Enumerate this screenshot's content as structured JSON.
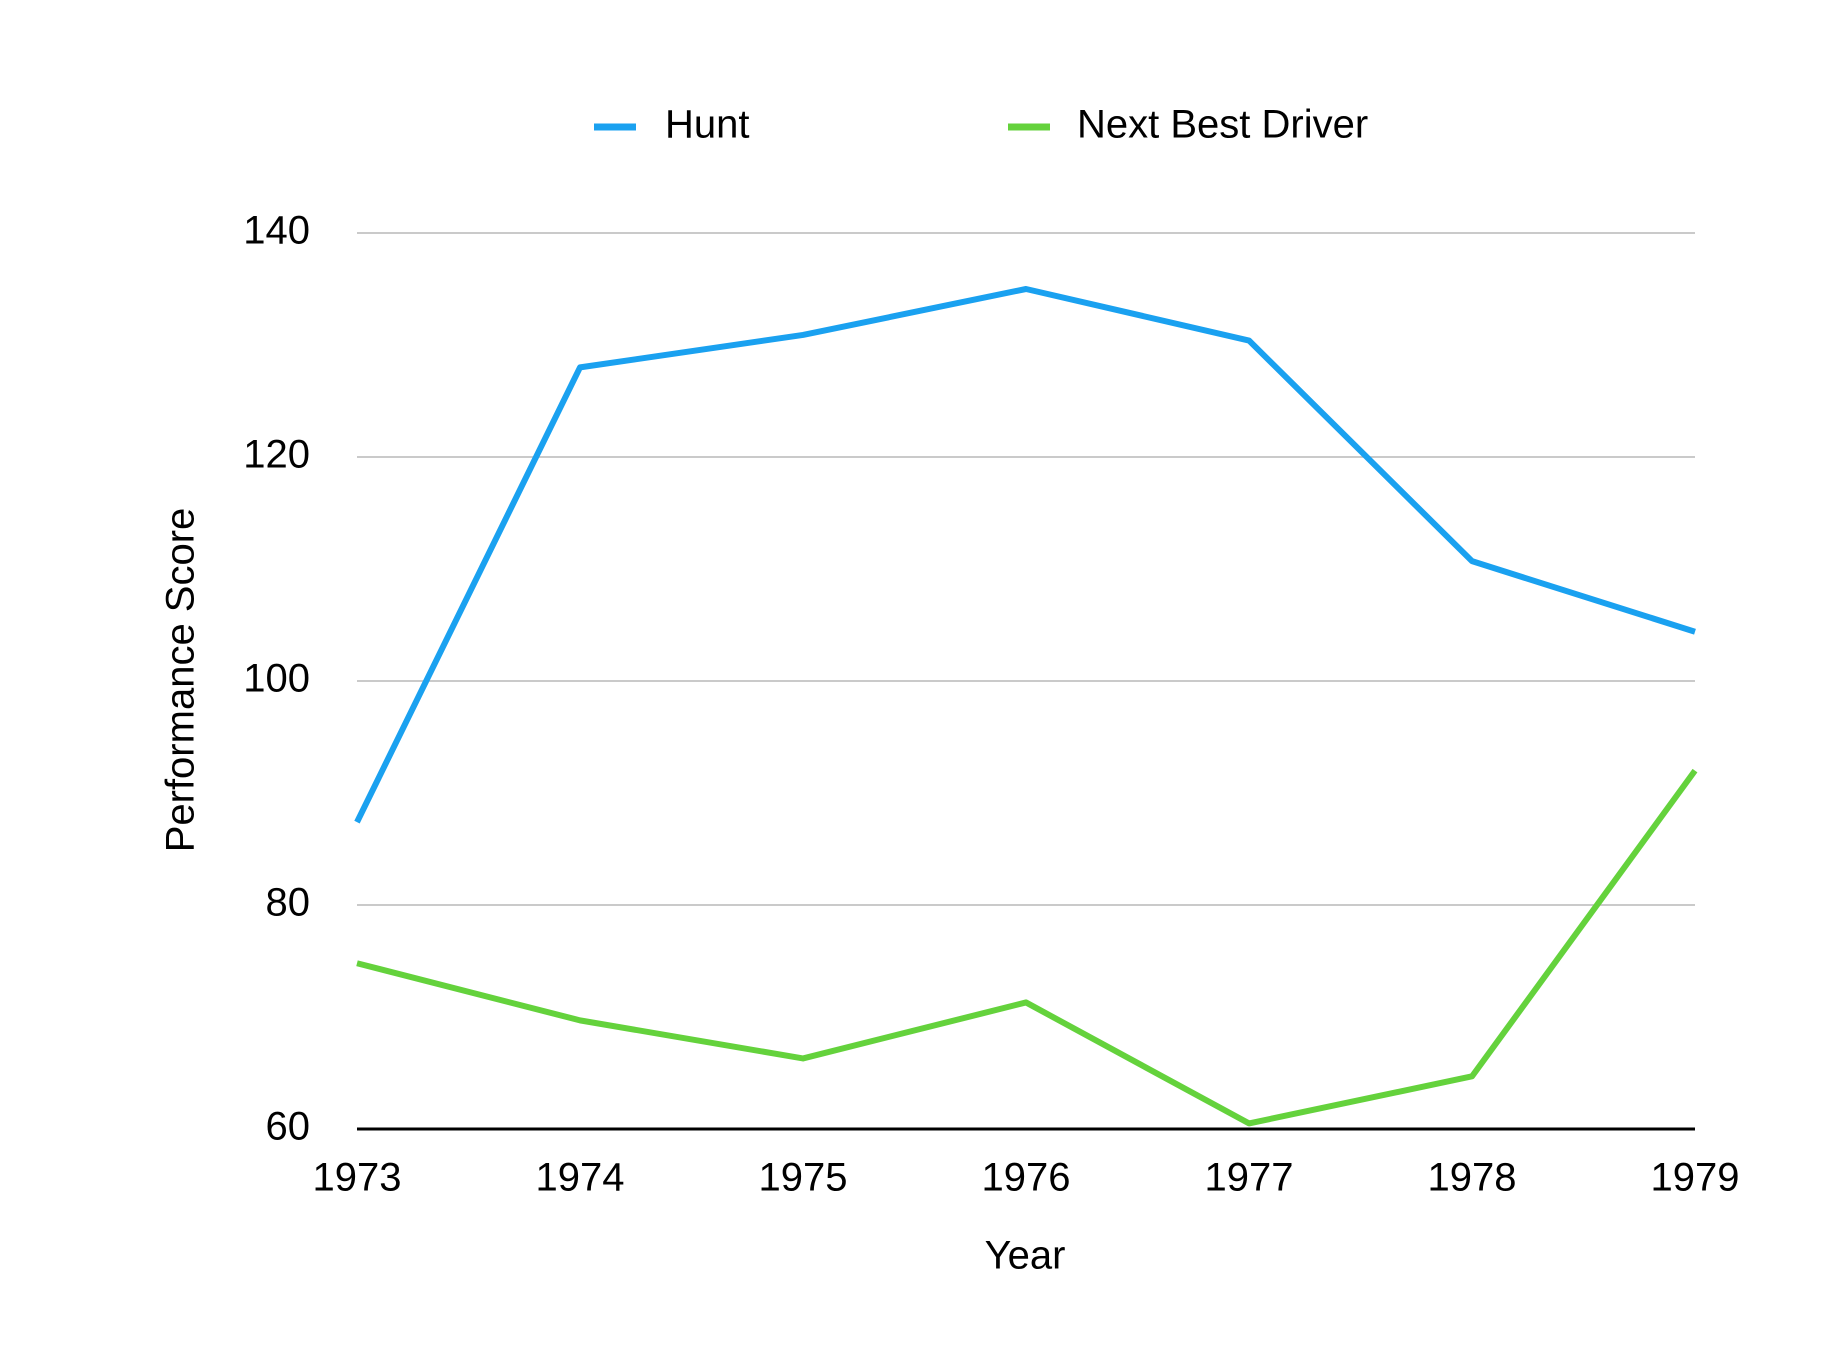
{
  "chart_data": {
    "type": "line",
    "x": [
      1973,
      1974,
      1975,
      1976,
      1977,
      1978,
      1979
    ],
    "series": [
      {
        "name": "Hunt",
        "color": "#1aa1f0",
        "values": [
          87.4,
          128,
          130.9,
          135,
          130.4,
          110.7,
          104.4
        ]
      },
      {
        "name": "Next Best Driver",
        "color": "#64d23c",
        "values": [
          74.8,
          69.7,
          66.3,
          71.3,
          60.5,
          64.7,
          92
        ]
      }
    ],
    "xlabel": "Year",
    "ylabel": "Performance Score",
    "xlim": [
      1973,
      1979
    ],
    "xticks": [
      1973,
      1974,
      1975,
      1976,
      1977,
      1978,
      1979
    ],
    "ylim": [
      60,
      140
    ],
    "yticks": [
      60,
      80,
      100,
      120,
      140
    ],
    "grid": true,
    "legend": "top"
  }
}
